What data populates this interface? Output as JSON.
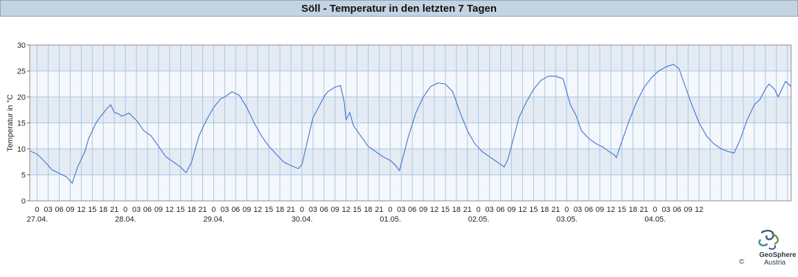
{
  "chart_data": {
    "type": "line",
    "title": "Söll - Temperatur in den letzten 7 Tagen",
    "ylabel": "Temperatur in °C",
    "xlabel": "",
    "ylim": [
      0,
      30
    ],
    "yticks": [
      "0",
      "5",
      "10",
      "15",
      "20",
      "25",
      "30"
    ],
    "hour_labels": [
      "0",
      "03",
      "06",
      "09",
      "12",
      "15",
      "18",
      "21",
      "0",
      "03",
      "06",
      "09",
      "12",
      "15",
      "18",
      "21",
      "0",
      "03",
      "06",
      "09",
      "12",
      "15",
      "18",
      "21",
      "0",
      "03",
      "06",
      "09",
      "12",
      "15",
      "18",
      "21",
      "0",
      "03",
      "06",
      "09",
      "12",
      "15",
      "18",
      "21",
      "0",
      "03",
      "06",
      "09",
      "12",
      "15",
      "18",
      "21",
      "0",
      "03",
      "06",
      "09",
      "12",
      "15",
      "18",
      "21",
      "0",
      "03",
      "06",
      "09",
      "12"
    ],
    "date_labels": [
      "27.04.",
      "28.04.",
      "29.04.",
      "30.04.",
      "01.05.",
      "02.05.",
      "03.05.",
      "04.05."
    ],
    "x_unit": "hours from 27.04. 00:00",
    "xlim": [
      -2,
      205
    ],
    "grid": true,
    "series": [
      {
        "color": "#4a78d0",
        "points": [
          [
            -2,
            9.6
          ],
          [
            0,
            9.0
          ],
          [
            2,
            7.6
          ],
          [
            4,
            6.0
          ],
          [
            6,
            5.3
          ],
          [
            8,
            4.6
          ],
          [
            9.5,
            3.4
          ],
          [
            11,
            6.5
          ],
          [
            13,
            9.5
          ],
          [
            14,
            12.0
          ],
          [
            16,
            15.0
          ],
          [
            17,
            16.0
          ],
          [
            19,
            17.8
          ],
          [
            20,
            18.5
          ],
          [
            21,
            17.0
          ],
          [
            22,
            16.8
          ],
          [
            23,
            16.3
          ],
          [
            25,
            16.9
          ],
          [
            27,
            15.5
          ],
          [
            29,
            13.5
          ],
          [
            31,
            12.5
          ],
          [
            33,
            10.5
          ],
          [
            35,
            8.5
          ],
          [
            37,
            7.5
          ],
          [
            39,
            6.5
          ],
          [
            40.5,
            5.4
          ],
          [
            42,
            7.5
          ],
          [
            44,
            12.5
          ],
          [
            46,
            15.5
          ],
          [
            48,
            18.0
          ],
          [
            50,
            19.7
          ],
          [
            51,
            20.0
          ],
          [
            53,
            21.0
          ],
          [
            55,
            20.3
          ],
          [
            57,
            18.0
          ],
          [
            59,
            15.0
          ],
          [
            61,
            12.5
          ],
          [
            63,
            10.5
          ],
          [
            65,
            9.0
          ],
          [
            67,
            7.5
          ],
          [
            69,
            6.8
          ],
          [
            71,
            6.2
          ],
          [
            72,
            7.0
          ],
          [
            73.5,
            11.5
          ],
          [
            75,
            16.0
          ],
          [
            76.5,
            18.0
          ],
          [
            78,
            20.0
          ],
          [
            79,
            21.0
          ],
          [
            81,
            21.9
          ],
          [
            82.5,
            22.2
          ],
          [
            83.5,
            19.0
          ],
          [
            84,
            15.6
          ],
          [
            85,
            17.0
          ],
          [
            86,
            14.5
          ],
          [
            88,
            12.5
          ],
          [
            90,
            10.5
          ],
          [
            92,
            9.5
          ],
          [
            94,
            8.5
          ],
          [
            96,
            7.8
          ],
          [
            97.5,
            6.8
          ],
          [
            98.5,
            5.8
          ],
          [
            99.5,
            8.5
          ],
          [
            101,
            12.5
          ],
          [
            103,
            17.0
          ],
          [
            105,
            20.0
          ],
          [
            107,
            22.0
          ],
          [
            109,
            22.7
          ],
          [
            111,
            22.5
          ],
          [
            113,
            21.0
          ],
          [
            115,
            17.0
          ],
          [
            117,
            13.5
          ],
          [
            119,
            11.0
          ],
          [
            121,
            9.5
          ],
          [
            123,
            8.5
          ],
          [
            125,
            7.5
          ],
          [
            126.5,
            6.8
          ],
          [
            127,
            6.5
          ],
          [
            128,
            8.0
          ],
          [
            129.5,
            12.0
          ],
          [
            131,
            16.0
          ],
          [
            133,
            19.0
          ],
          [
            135,
            21.5
          ],
          [
            137,
            23.2
          ],
          [
            139,
            24.0
          ],
          [
            141,
            24.0
          ],
          [
            143,
            23.5
          ],
          [
            144,
            21.0
          ],
          [
            145,
            18.5
          ],
          [
            146.5,
            16.5
          ],
          [
            148,
            13.5
          ],
          [
            150,
            12.0
          ],
          [
            152,
            11.0
          ],
          [
            154,
            10.3
          ],
          [
            155.5,
            9.5
          ],
          [
            157,
            8.8
          ],
          [
            157.5,
            8.3
          ],
          [
            159,
            11.5
          ],
          [
            161,
            15.5
          ],
          [
            163,
            19.0
          ],
          [
            165,
            21.8
          ],
          [
            167,
            23.7
          ],
          [
            169,
            25.0
          ],
          [
            171,
            25.8
          ],
          [
            173,
            26.3
          ],
          [
            174.5,
            25.5
          ],
          [
            176,
            22.5
          ],
          [
            178,
            18.5
          ],
          [
            180,
            15.0
          ],
          [
            182,
            12.5
          ],
          [
            184,
            11.0
          ],
          [
            186,
            10.0
          ],
          [
            188,
            9.5
          ],
          [
            189.5,
            9.2
          ],
          [
            191,
            11.5
          ],
          [
            193,
            15.5
          ],
          [
            195,
            18.5
          ],
          [
            196.5,
            19.5
          ],
          [
            198,
            21.5
          ],
          [
            199,
            22.5
          ],
          [
            200.5,
            21.5
          ],
          [
            201.5,
            20.0
          ],
          [
            202.5,
            21.5
          ],
          [
            203.5,
            23.0
          ],
          [
            205,
            22.0
          ]
        ]
      }
    ]
  },
  "logo": {
    "name": "GeoSphere",
    "sub": "Austria",
    "copyright": "©"
  }
}
